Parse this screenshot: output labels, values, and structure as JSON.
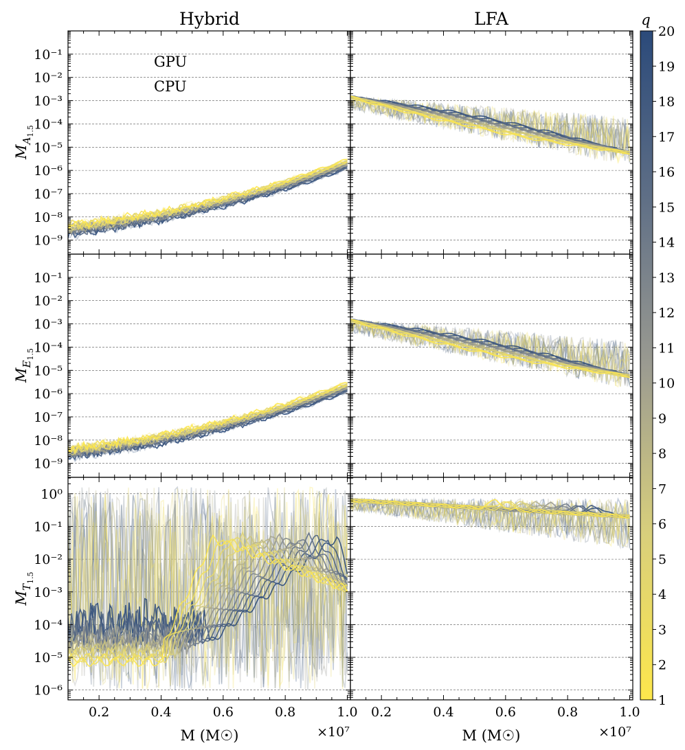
{
  "chart_data": {
    "type": "line",
    "columns": [
      "Hybrid",
      "LFA"
    ],
    "row_ylabels": [
      {
        "base": "M",
        "sub": "A",
        "subsub": "1.5"
      },
      {
        "base": "M",
        "sub": "E",
        "subsub": "1.5"
      },
      {
        "base": "M",
        "sub": "T",
        "subsub": "1.5"
      }
    ],
    "xlabel": "M (M☉)",
    "x_multiplier": "×10⁷",
    "x_ticks": [
      "0.2",
      "0.4",
      "0.6",
      "0.8",
      "1.0"
    ],
    "x_tick_values": [
      0.2,
      0.4,
      0.6,
      0.8,
      1.0
    ],
    "xlim": [
      0.1,
      1.01
    ],
    "y_scale": "log",
    "row_ylim_log10": [
      [
        -9.6,
        0.0
      ],
      [
        -9.6,
        0.0
      ],
      [
        -6.3,
        0.5
      ]
    ],
    "row_yticks_log10": [
      [
        -9,
        -8,
        -7,
        -6,
        -5,
        -4,
        -3,
        -2,
        -1
      ],
      [
        -9,
        -8,
        -7,
        -6,
        -5,
        -4,
        -3,
        -2,
        -1
      ],
      [
        -6,
        -5,
        -4,
        -3,
        -2,
        -1,
        0
      ]
    ],
    "grid": true,
    "legend": {
      "entries": [
        "GPU",
        "CPU"
      ],
      "placement": "top-left",
      "panel": "Hybrid-A"
    },
    "colorbar": {
      "label": "q",
      "min": 1,
      "max": 20,
      "ticks": [
        "1",
        "2",
        "3",
        "4",
        "5",
        "6",
        "7",
        "8",
        "9",
        "10",
        "11",
        "12",
        "13",
        "14",
        "15",
        "16",
        "17",
        "18",
        "19",
        "20"
      ],
      "color_low": "#fde74c",
      "color_mid": "#9b9b91",
      "color_high": "#2b4a7a"
    },
    "panels": [
      {
        "id": "hybrid-A",
        "row": 0,
        "col": 0,
        "cpu_trend": "log10 M rises from about -8.6 at M=0.1e7 to about -6.0 at M=1.0e7; low q (yellow) slightly above high q",
        "gpu_trend": "same as CPU"
      },
      {
        "id": "lfa-A",
        "row": 0,
        "col": 1,
        "cpu_trend": "log10 M falls from about -2.9 at M=0.1e7 to about -5.2 at M=1.0e7",
        "gpu_trend": "noisy between -4.5 and -2, upper envelope near -3.5 at high mass"
      },
      {
        "id": "hybrid-E",
        "row": 1,
        "col": 0,
        "cpu_trend": "log10 M rises from about -8.6 at M=0.1e7 to about -6.0 at M=1.0e7",
        "gpu_trend": "same as CPU"
      },
      {
        "id": "lfa-E",
        "row": 1,
        "col": 1,
        "cpu_trend": "log10 M falls from about -2.8 at M=0.1e7 to about -5.3 at M=1.0e7",
        "gpu_trend": "noisy between -5 and -1.5"
      },
      {
        "id": "hybrid-T",
        "row": 2,
        "col": 0,
        "cpu_trend": "noisy around -4.5 at low mass, rising to about -1.3 peaks near M=0.55e7-0.95e7",
        "gpu_trend": "very noisy, spanning -6 to 0"
      },
      {
        "id": "lfa-T",
        "row": 2,
        "col": 1,
        "cpu_trend": "near -0.2 at low mass, dropping to about -0.7 at high mass",
        "gpu_trend": "noisy between -1.3 and -0.1"
      }
    ]
  }
}
